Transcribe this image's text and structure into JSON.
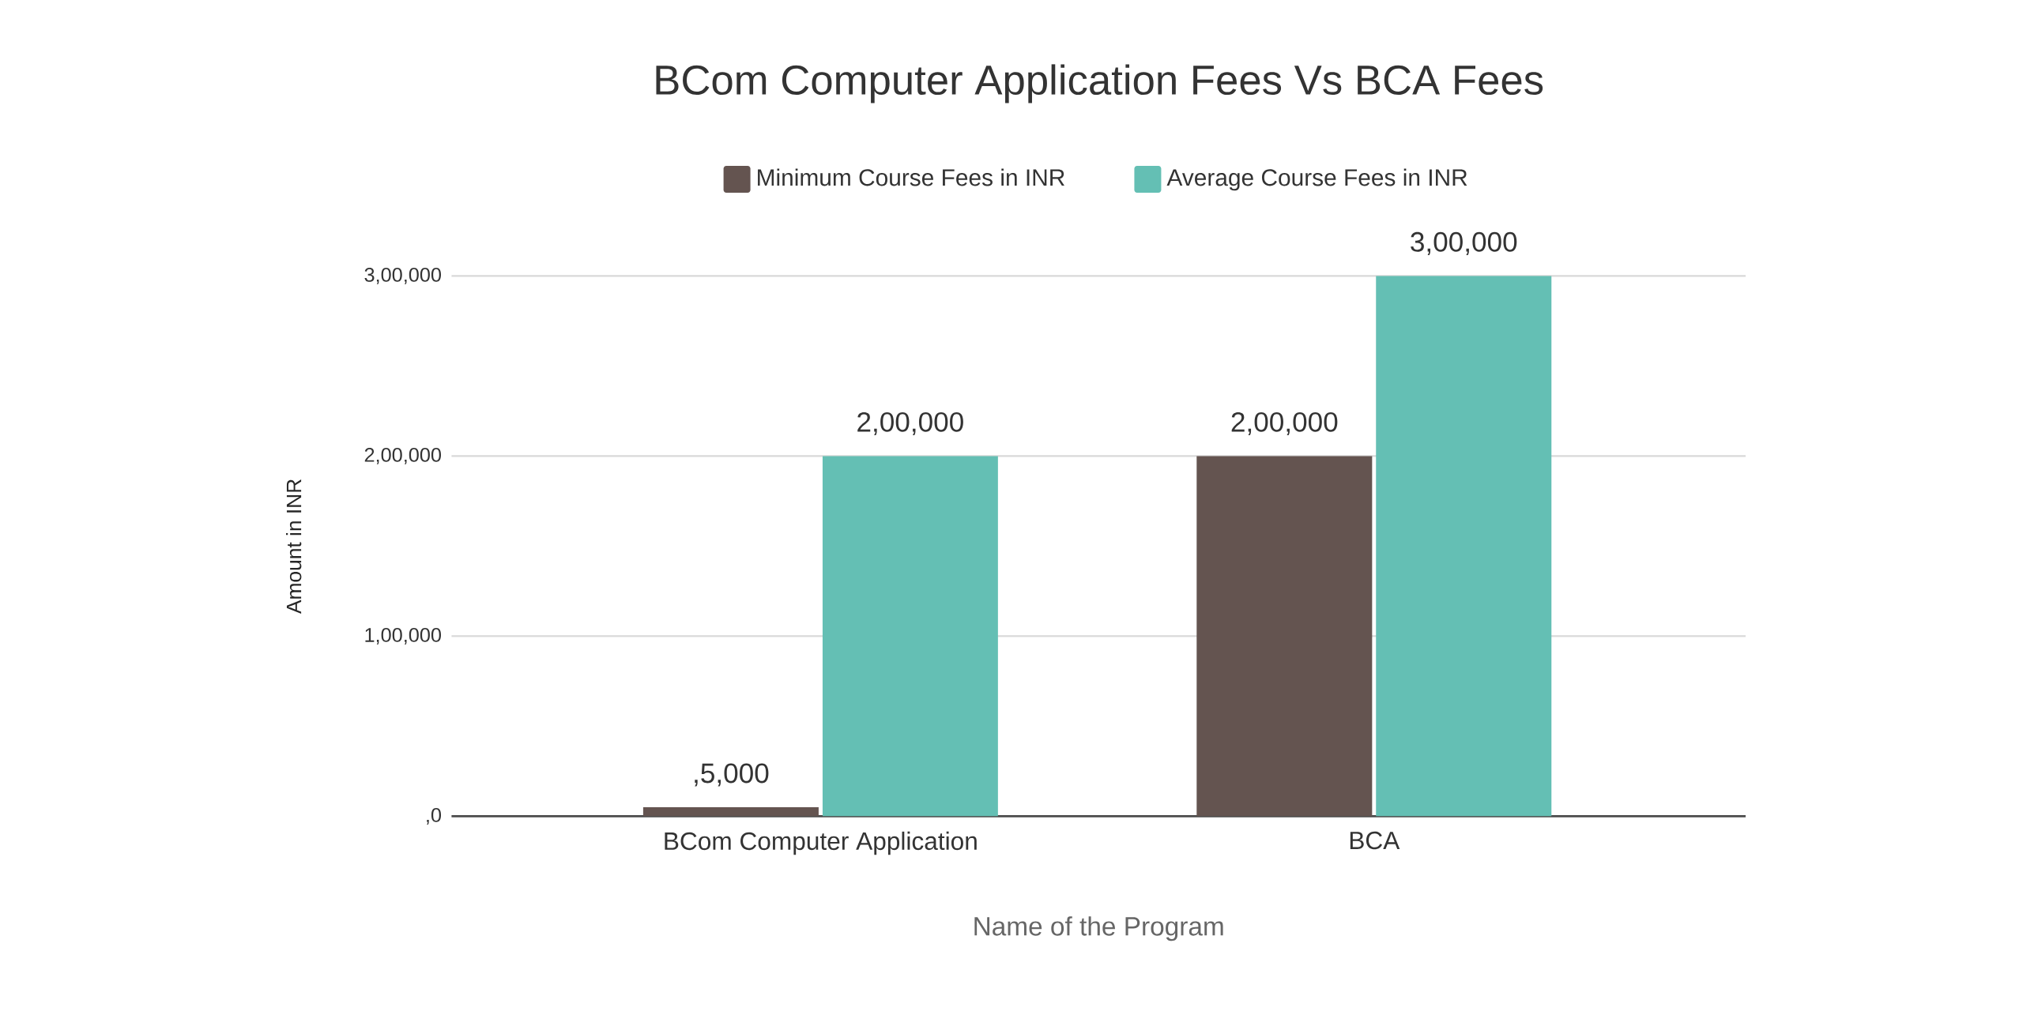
{
  "chart_data": {
    "type": "bar",
    "title": "BCom Computer Application Fees Vs BCA Fees",
    "xlabel": "Name of the Program",
    "ylabel": "Amount in INR",
    "categories": [
      "BCom Computer Application",
      "BCA"
    ],
    "series": [
      {
        "name": "Minimum Course Fees in INR",
        "color": "#645450",
        "values": [
          5000,
          200000
        ],
        "value_labels": [
          ",5,000",
          "2,00,000"
        ]
      },
      {
        "name": "Average Course Fees in INR",
        "color": "#64bfb4",
        "values": [
          200000,
          300000
        ],
        "value_labels": [
          "2,00,000",
          "3,00,000"
        ]
      }
    ],
    "ylim": [
      0,
      300000
    ],
    "yticks": [
      {
        "value": 0,
        "label": ",0"
      },
      {
        "value": 100000,
        "label": "1,00,000"
      },
      {
        "value": 200000,
        "label": "2,00,000"
      },
      {
        "value": 300000,
        "label": "3,00,000"
      }
    ],
    "grid": "y",
    "legend": "top"
  }
}
